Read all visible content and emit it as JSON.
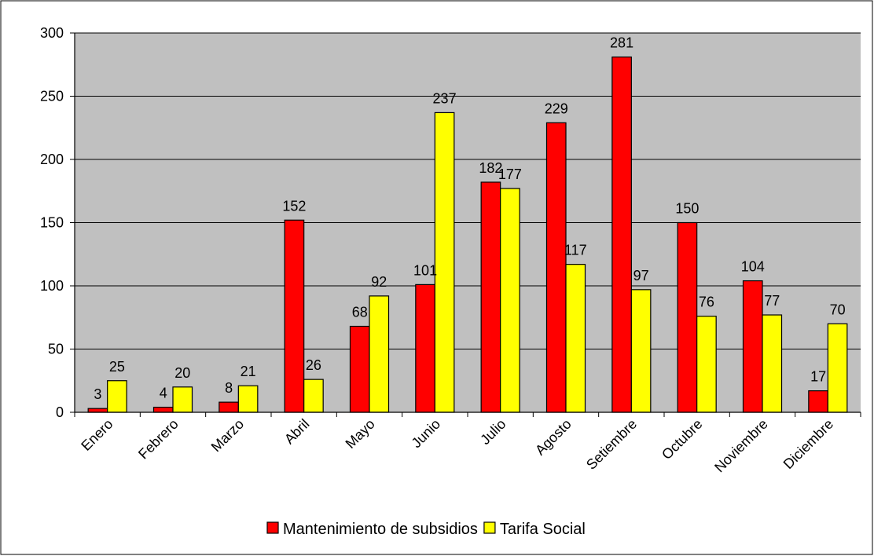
{
  "chart_data": {
    "type": "bar",
    "categories": [
      "Enero",
      "Febrero",
      "Marzo",
      "Abril",
      "Mayo",
      "Junio",
      "Julio",
      "Agosto",
      "Setiembre",
      "Octubre",
      "Noviembre",
      "Diciembre"
    ],
    "series": [
      {
        "name": "Mantenimiento de subsidios",
        "color": "#ff0000",
        "values": [
          3,
          4,
          8,
          152,
          68,
          101,
          182,
          229,
          281,
          150,
          104,
          17
        ]
      },
      {
        "name": "Tarifa Social",
        "color": "#ffff00",
        "values": [
          25,
          20,
          21,
          26,
          92,
          237,
          177,
          117,
          97,
          76,
          77,
          70
        ]
      }
    ],
    "title": "",
    "xlabel": "",
    "ylabel": "",
    "ylim": [
      0,
      300
    ],
    "yticks": [
      0,
      50,
      100,
      150,
      200,
      250,
      300
    ],
    "grid": true,
    "legend_position": "bottom",
    "plot_background": "#c0c0c0",
    "data_labels": true
  }
}
